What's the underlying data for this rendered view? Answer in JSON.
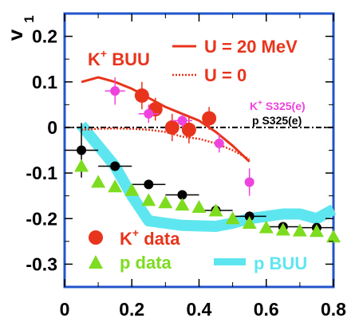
{
  "chart_data": {
    "type": "scatter",
    "title": "",
    "xlabel": "",
    "ylabel": "v",
    "ylabel_sub": "1",
    "xlim": [
      0,
      0.8
    ],
    "ylim": [
      -0.35,
      0.25
    ],
    "x_ticks": [
      0,
      0.2,
      0.4,
      0.6,
      0.8
    ],
    "x_tick_labels": [
      "0",
      "0.2",
      "0.4",
      "0.6",
      "0.8"
    ],
    "y_ticks": [
      0.2,
      0.1,
      0,
      -0.1,
      -0.2,
      -0.3
    ],
    "y_tick_labels": [
      "0.2",
      "0.1",
      "0",
      "-0.1",
      "-0.2",
      "-0.3"
    ],
    "grid": false,
    "zero_line": "dash-dot",
    "annotations": {
      "model_label_main": "K",
      "model_label_sup": "+",
      "model_label_rest": " BUU",
      "legend_u20": "U = 20 MeV",
      "legend_u0": "U = 0",
      "s325_k_main": "K",
      "s325_k_sup": "+",
      "s325_k_rest": " S325(e)",
      "s325_p": "p S325(e)",
      "legend_k_main": "K",
      "legend_k_sup": "+",
      "legend_k_rest": " data",
      "legend_p_data": "p data",
      "legend_p_buu": "p BUU"
    },
    "colors": {
      "kaon_data": "#e8341c",
      "kaon_s325": "#ee44dd",
      "proton_data": "#7ddc1f",
      "proton_s325": "#000000",
      "proton_buu": "#5ee6f0",
      "kaon_buu": "#e8341c",
      "frame": "#2255cc"
    },
    "series": [
      {
        "name": "K+ data",
        "kind": "points-circle",
        "x": [
          0.23,
          0.27,
          0.32,
          0.37,
          0.43
        ],
        "y": [
          0.07,
          0.04,
          0.0,
          -0.005,
          0.02
        ],
        "yerr": [
          0.03,
          0.025,
          0.03,
          0.03,
          0.025
        ],
        "xerr": [
          0.02,
          0.02,
          0.02,
          0.02,
          0.0
        ]
      },
      {
        "name": "K+ S325(e)",
        "kind": "points-circle",
        "x": [
          0.15,
          0.25,
          0.35,
          0.46,
          0.55
        ],
        "y": [
          0.08,
          0.03,
          0.015,
          -0.035,
          -0.12
        ],
        "yerr": [
          0.03,
          0.02,
          0.015,
          0.02,
          0.03
        ],
        "xerr": [
          0.03,
          0.03,
          0.03,
          0.0,
          0.0
        ]
      },
      {
        "name": "p S325(e)",
        "kind": "points-circle",
        "x": [
          0.05,
          0.15,
          0.25,
          0.35,
          0.45,
          0.55,
          0.65,
          0.75
        ],
        "y": [
          -0.05,
          -0.085,
          -0.125,
          -0.148,
          -0.182,
          -0.195,
          -0.218,
          -0.22
        ],
        "yerr": [
          0.06,
          0.01,
          0.01,
          0.01,
          0.01,
          0.01,
          0.01,
          0.01
        ],
        "xerr": [
          0.05,
          0.05,
          0.05,
          0.05,
          0.05,
          0.05,
          0.05,
          0.05
        ]
      },
      {
        "name": "p data",
        "kind": "points-triangle",
        "x": [
          0.05,
          0.1,
          0.15,
          0.2,
          0.25,
          0.3,
          0.35,
          0.4,
          0.45,
          0.5,
          0.55,
          0.6,
          0.65,
          0.7,
          0.75,
          0.8
        ],
        "y": [
          -0.085,
          -0.12,
          -0.13,
          -0.138,
          -0.16,
          -0.165,
          -0.17,
          -0.175,
          -0.183,
          -0.2,
          -0.21,
          -0.22,
          -0.225,
          -0.227,
          -0.228,
          -0.24
        ]
      },
      {
        "name": "K+ BUU U = 20 MeV",
        "kind": "line-solid",
        "x": [
          0.05,
          0.1,
          0.15,
          0.2,
          0.25,
          0.3,
          0.35,
          0.4,
          0.45,
          0.5,
          0.55
        ],
        "y": [
          0.1,
          0.11,
          0.1,
          0.085,
          0.065,
          0.045,
          0.03,
          0.015,
          -0.01,
          -0.04,
          -0.075
        ]
      },
      {
        "name": "K+ BUU U = 0",
        "kind": "line-dotted",
        "x": [
          0.05,
          0.1,
          0.15,
          0.2,
          0.25,
          0.3,
          0.35,
          0.4,
          0.45,
          0.5,
          0.55
        ],
        "y": [
          -0.005,
          -0.003,
          -0.002,
          -0.003,
          -0.005,
          -0.01,
          -0.02,
          -0.025,
          -0.035,
          -0.05,
          -0.07
        ]
      },
      {
        "name": "p BUU",
        "kind": "band",
        "x": [
          0.05,
          0.1,
          0.15,
          0.2,
          0.25,
          0.3,
          0.35,
          0.4,
          0.45,
          0.5,
          0.55,
          0.6,
          0.65,
          0.7,
          0.75,
          0.8
        ],
        "y": [
          0.005,
          -0.04,
          -0.085,
          -0.15,
          -0.205,
          -0.21,
          -0.215,
          -0.216,
          -0.217,
          -0.21,
          -0.2,
          -0.195,
          -0.19,
          -0.19,
          -0.2,
          -0.18
        ]
      }
    ]
  }
}
